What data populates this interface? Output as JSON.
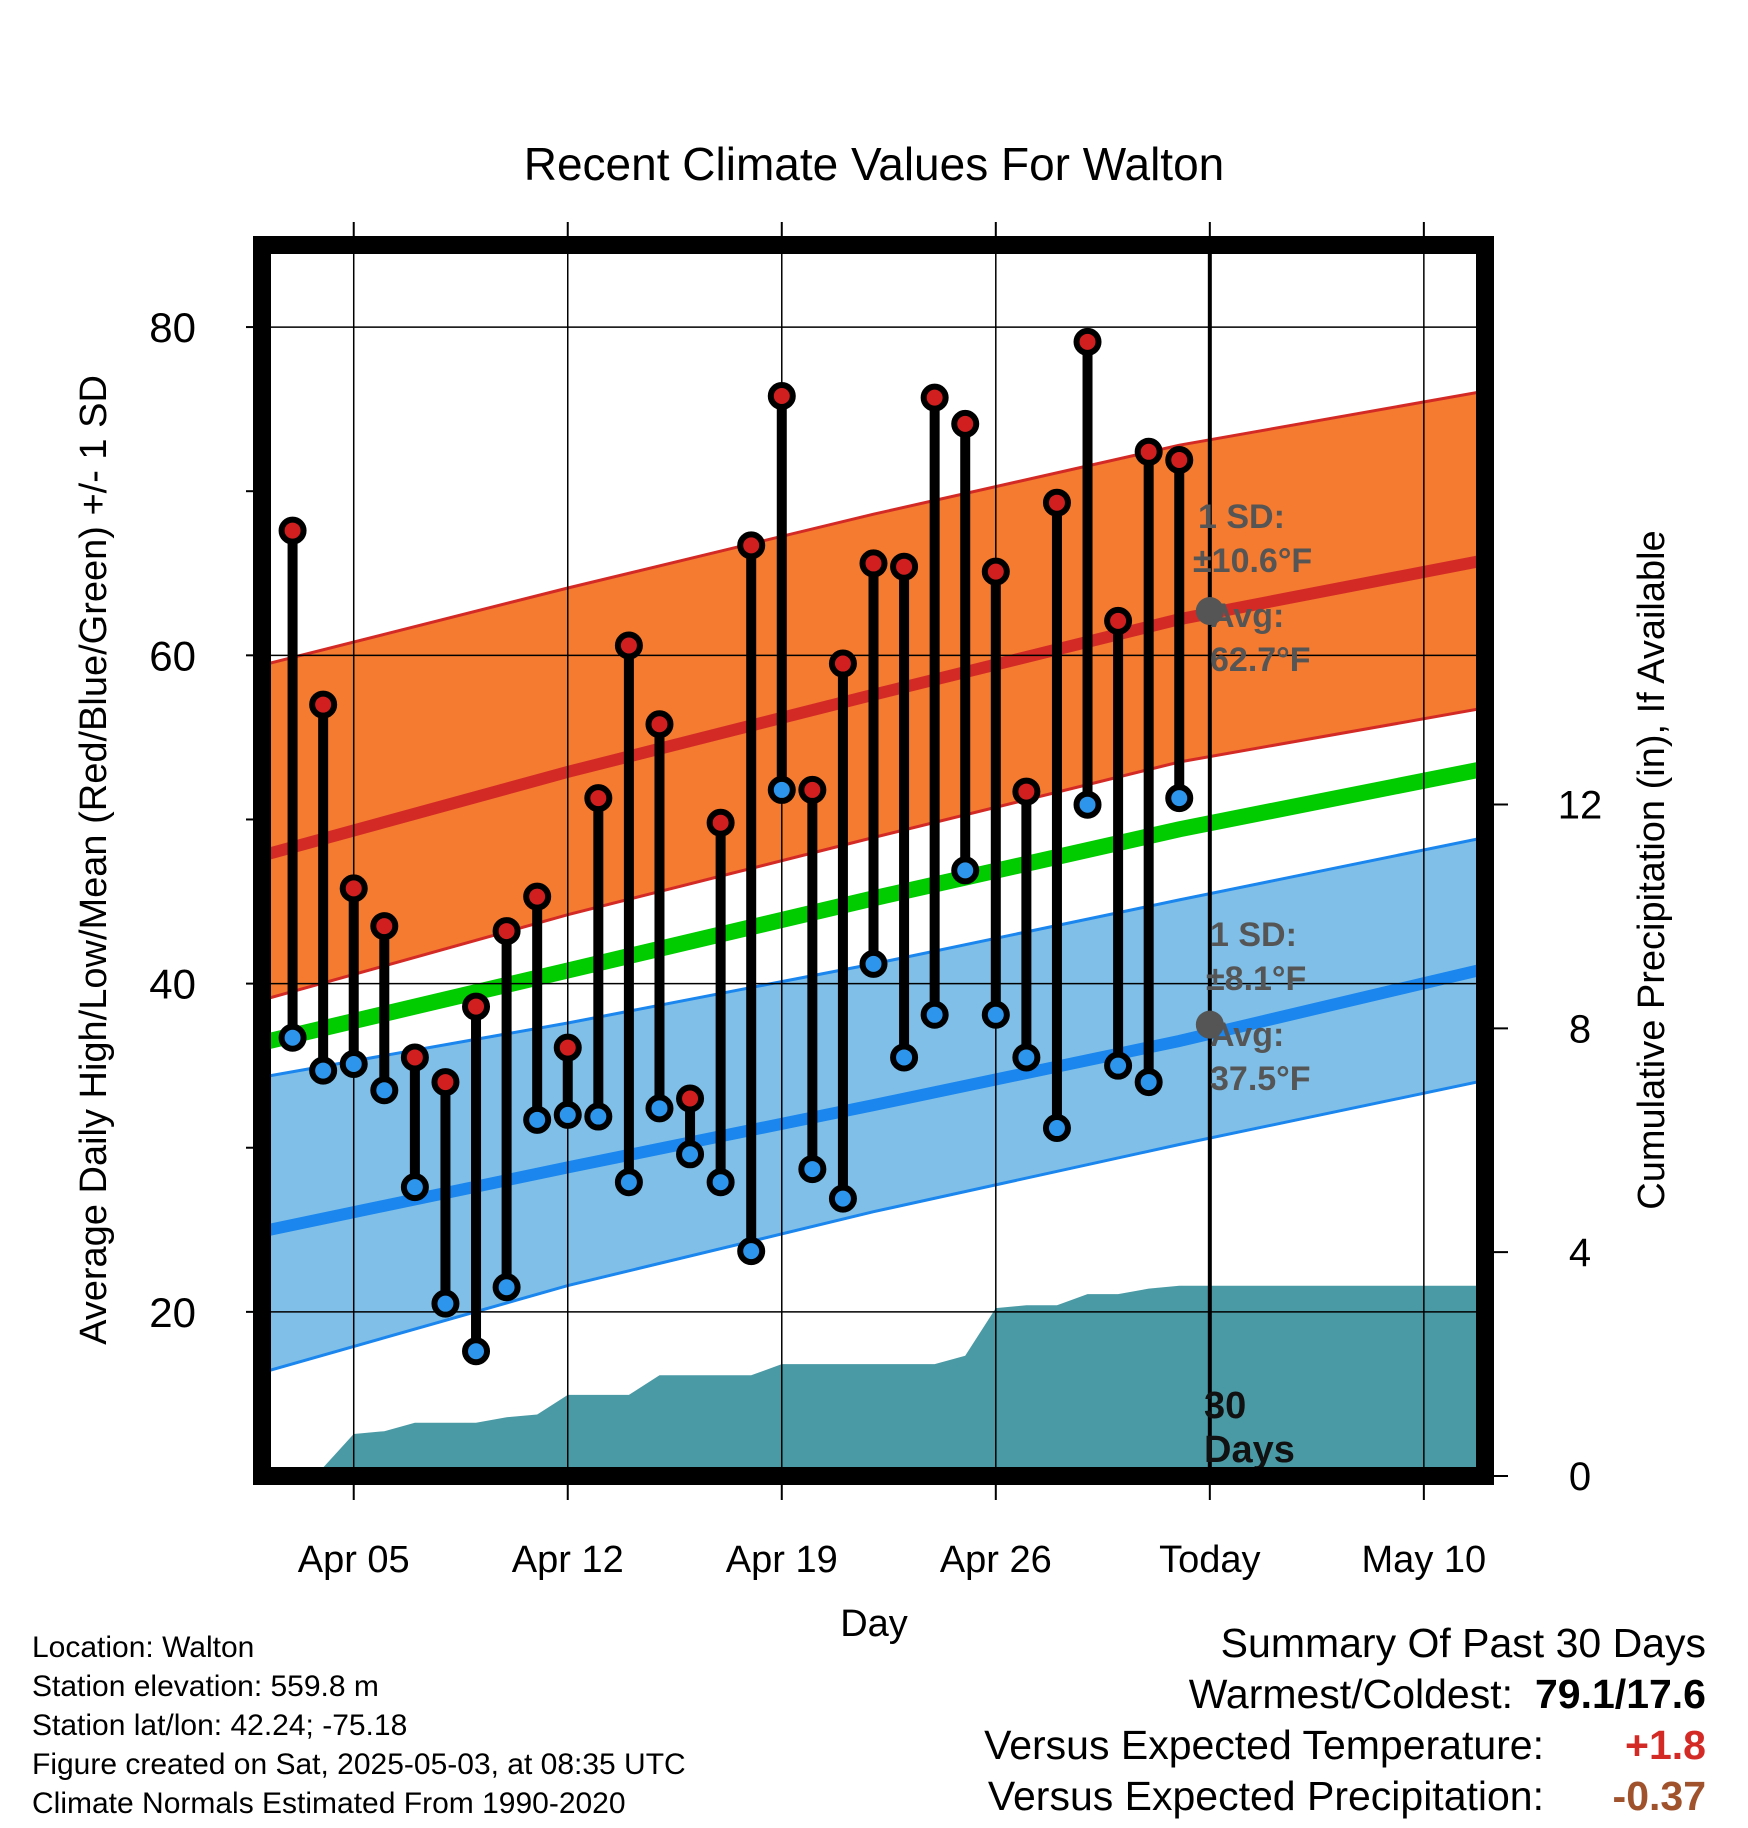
{
  "chart_data": {
    "type": "line",
    "title": "Recent Climate Values For Walton",
    "xlabel": "Day",
    "ylabel": "Average Daily High/Low/Mean (Red/Blue/Green) +/- 1 SD",
    "y2label": "Cumulative Precipitation (in), If Available",
    "x_tick_labels": [
      "Apr 05",
      "Apr 12",
      "Apr 19",
      "Apr 26",
      "Today",
      "May 10"
    ],
    "x_range": [
      "Apr 02",
      "May 12"
    ],
    "ylim": [
      10,
      85
    ],
    "y_ticks": [
      20,
      40,
      60,
      80
    ],
    "y2lim": [
      0,
      22
    ],
    "y2_ticks": [
      0,
      4,
      8,
      12
    ],
    "grid": true,
    "today": "May 03",
    "today_label": [
      "30",
      "Days"
    ],
    "days": [
      "Apr 03",
      "Apr 04",
      "Apr 05",
      "Apr 06",
      "Apr 07",
      "Apr 08",
      "Apr 09",
      "Apr 10",
      "Apr 11",
      "Apr 12",
      "Apr 13",
      "Apr 14",
      "Apr 15",
      "Apr 16",
      "Apr 17",
      "Apr 18",
      "Apr 19",
      "Apr 20",
      "Apr 21",
      "Apr 22",
      "Apr 23",
      "Apr 24",
      "Apr 25",
      "Apr 26",
      "Apr 27",
      "Apr 28",
      "Apr 29",
      "Apr 30",
      "May 01",
      "May 02"
    ],
    "series": [
      {
        "name": "High",
        "color": "#d11f1f",
        "values": [
          67.6,
          57.0,
          45.8,
          43.5,
          35.5,
          34.0,
          38.6,
          43.2,
          45.3,
          36.1,
          51.3,
          60.6,
          55.8,
          33.0,
          49.8,
          66.7,
          75.8,
          51.8,
          59.5,
          65.6,
          65.4,
          75.7,
          74.1,
          65.1,
          51.7,
          69.3,
          79.1,
          62.1,
          72.4,
          71.9
        ]
      },
      {
        "name": "Low",
        "color": "#2d95eb",
        "values": [
          36.7,
          34.7,
          35.1,
          33.5,
          27.6,
          20.5,
          17.6,
          21.5,
          31.7,
          32.0,
          31.9,
          27.9,
          32.4,
          29.6,
          27.9,
          23.7,
          51.8,
          28.7,
          26.9,
          41.2,
          35.5,
          38.1,
          46.9,
          38.1,
          35.5,
          31.2,
          50.9,
          35.0,
          34.0,
          51.3
        ]
      }
    ],
    "normals": {
      "days": [
        "Apr 02",
        "Apr 12",
        "Apr 22",
        "May 02",
        "May 12"
      ],
      "high": {
        "name": "Avg",
        "color": "#d42a26",
        "values": [
          47.8,
          52.9,
          57.6,
          62.2,
          65.8
        ]
      },
      "high_band": {
        "name": "1 SD",
        "color": "#f47b30",
        "lower": [
          39.0,
          44.2,
          48.9,
          53.5,
          56.8
        ],
        "upper": [
          59.4,
          64.1,
          68.6,
          72.8,
          76.1
        ]
      },
      "low": {
        "name": "Avg",
        "color": "#1a86ee",
        "values": [
          24.9,
          28.8,
          32.6,
          36.5,
          40.9
        ]
      },
      "low_band": {
        "name": "1 SD",
        "color": "#7fbfe8",
        "lower": [
          16.3,
          21.6,
          26.1,
          30.2,
          34.1
        ],
        "upper": [
          34.3,
          37.6,
          41.2,
          45.1,
          48.9
        ]
      },
      "mean": {
        "color": "#00cc00",
        "values": [
          36.4,
          40.8,
          45.2,
          49.4,
          53.1
        ]
      }
    },
    "precip": {
      "name": "Cumulative Precipitation",
      "color": "#4a9aa5",
      "days": [
        "Apr 02",
        "Apr 03",
        "Apr 04",
        "Apr 05",
        "Apr 06",
        "Apr 07",
        "Apr 08",
        "Apr 09",
        "Apr 10",
        "Apr 11",
        "Apr 12",
        "Apr 13",
        "Apr 14",
        "Apr 15",
        "Apr 16",
        "Apr 17",
        "Apr 18",
        "Apr 19",
        "Apr 20",
        "Apr 21",
        "Apr 22",
        "Apr 23",
        "Apr 24",
        "Apr 25",
        "Apr 26",
        "Apr 27",
        "Apr 28",
        "Apr 29",
        "Apr 30",
        "May 01",
        "May 02",
        "May 03",
        "May 12"
      ],
      "values": [
        0,
        0.15,
        0.15,
        0.75,
        0.8,
        0.95,
        0.95,
        0.95,
        1.05,
        1.1,
        1.45,
        1.45,
        1.45,
        1.8,
        1.8,
        1.8,
        1.8,
        2.0,
        2.0,
        2.0,
        2.0,
        2.0,
        2.0,
        2.15,
        3.0,
        3.05,
        3.05,
        3.25,
        3.25,
        3.35,
        3.4,
        3.4,
        3.4
      ]
    },
    "annotations": {
      "high": {
        "sd_label": "1 SD:",
        "sd_value": "±10.6°F",
        "avg_label": "Avg:",
        "avg_value": "62.7°F",
        "marker_value": 62.7
      },
      "low": {
        "sd_label": "1 SD:",
        "sd_value": "±8.1°F",
        "avg_label": "Avg:",
        "avg_value": "37.5°F",
        "marker_value": 37.5
      }
    }
  },
  "info": {
    "location": "Location: Walton",
    "elevation": "Station elevation: 559.8 m",
    "latlon": "Station lat/lon: 42.24; -75.18",
    "created": "Figure created on Sat, 2025-05-03, at 08:35 UTC",
    "normals": "Climate Normals Estimated From 1990-2020"
  },
  "summary": {
    "title": "Summary Of Past 30 Days",
    "warm_cold_label": "Warmest/Coldest:",
    "warm_cold_value": "79.1/17.6",
    "temp_label": "Versus Expected Temperature:",
    "temp_value": "+1.8",
    "temp_color": "#d42a26",
    "precip_label": "Versus Expected Precipitation:",
    "precip_value": "-0.37",
    "precip_color": "#a0522d"
  }
}
